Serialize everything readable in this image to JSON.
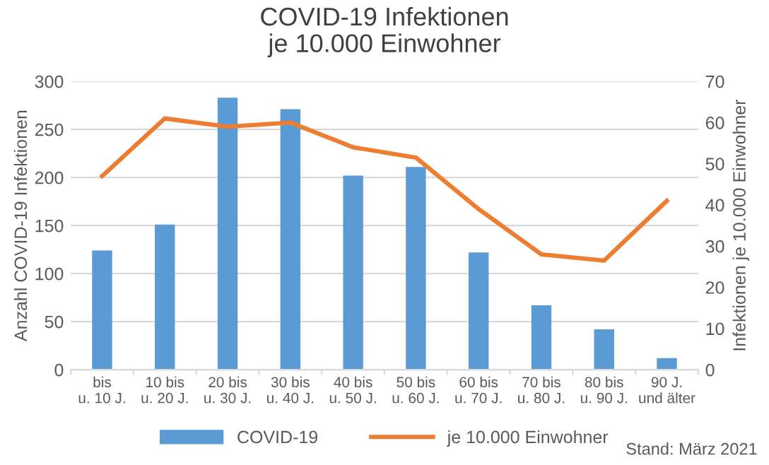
{
  "chart_data": {
    "type": "bar",
    "title": "COVID-19 Infektionen\nje 10.000 Einwohner",
    "categories": [
      "bis\nu. 10 J.",
      "10 bis\nu. 20 J.",
      "20 bis\nu. 30 J.",
      "30 bis\nu. 40 J.",
      "40 bis\nu. 50 J.",
      "50 bis\nu. 60 J.",
      "60 bis\nu. 70 J.",
      "70 bis\nu. 80 J.",
      "80 bis\nu. 90 J.",
      "90 J.\nund älter"
    ],
    "series": [
      {
        "name": "COVID-19",
        "color": "#5b9bd5",
        "values": [
          124,
          151,
          283,
          271,
          202,
          211,
          122,
          67,
          42,
          12
        ]
      },
      {
        "name": "je 10.000 Einwohner",
        "type": "line",
        "axis": "y2",
        "color": "#ed7d31",
        "values": [
          47,
          61,
          59,
          60,
          54,
          51.5,
          39,
          28,
          26.5,
          41
        ]
      }
    ],
    "ylabel": "Anzahl COVID-19 Infektionen",
    "y2label": "Infektionen je 10.000 Einwohner",
    "ylim": [
      0,
      300
    ],
    "yticks": [
      0,
      50,
      100,
      150,
      200,
      250,
      300
    ],
    "y2lim": [
      0,
      70
    ],
    "y2ticks": [
      0,
      10,
      20,
      30,
      40,
      50,
      60,
      70
    ],
    "grid": "y",
    "legend": "bottom",
    "marker": "none",
    "line_style": "solid",
    "annotations": [
      "Stand: März 2021"
    ]
  }
}
